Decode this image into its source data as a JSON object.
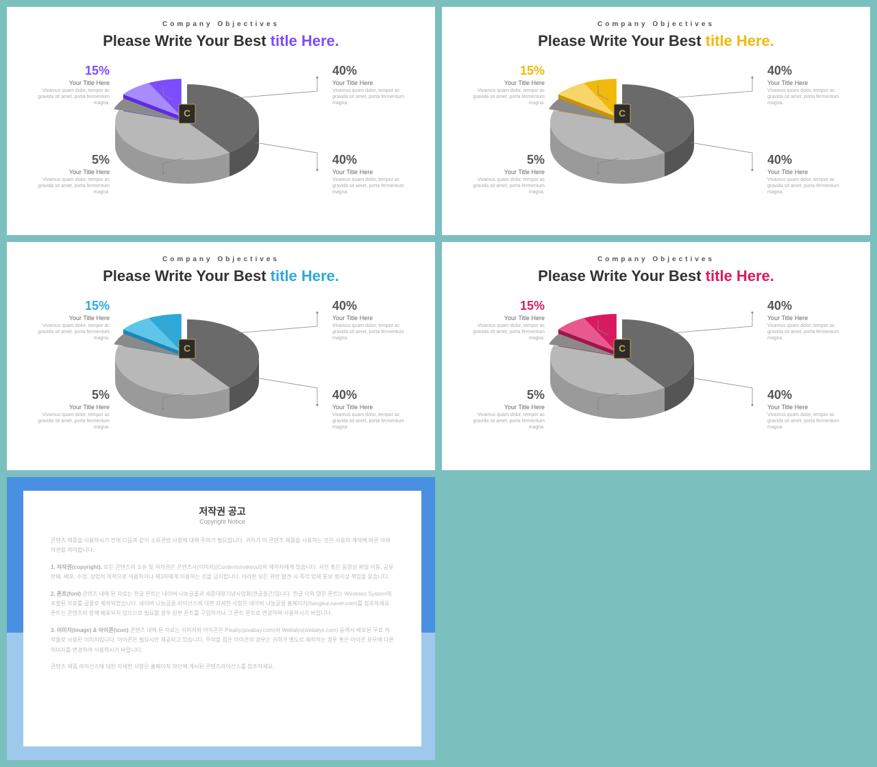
{
  "common": {
    "overline": "Company Objectives",
    "title_prefix": "Please Write Your Best ",
    "title_accent": "title Here.",
    "callouts": {
      "top_left": {
        "pct": "15%",
        "sub": "Your Title Here",
        "desc": "Vivamus quam dolor, tempor ac gravida sit amet, porta fermentum magna."
      },
      "bot_left": {
        "pct": "5%",
        "sub": "Your Title Here",
        "desc": "Vivamus quam dolor, tempor ac gravida sit amet, porta fermentum magna."
      },
      "top_right": {
        "pct": "40%",
        "sub": "Your Title Here",
        "desc": "Vivamus quam dolor, tempor ac gravida sit amet, porta fermentum magna."
      },
      "bot_right": {
        "pct": "40%",
        "sub": "Your Title Here",
        "desc": "Vivamus quam dolor, tempor ac gravida sit amet, porta fermentum magna."
      }
    },
    "pie": {
      "type": "pie-3d-exploded",
      "slices": [
        {
          "label": "top_right",
          "value": 40,
          "color_top": "#6a6a6a",
          "color_side": "#555555"
        },
        {
          "label": "bot_right",
          "value": 40,
          "color_top": "#b8b8b8",
          "color_side": "#9a9a9a"
        },
        {
          "label": "bot_left",
          "value": 5,
          "color_top": "#8a8a8a",
          "color_side": "#707070"
        },
        {
          "label": "top_left",
          "value": 15,
          "accent": true
        }
      ],
      "background": "#ffffff",
      "center_badge": "C",
      "leader_color": "#888888"
    }
  },
  "slides": [
    {
      "accent_color": "#7b4dff",
      "accent_side": "#5a2de0",
      "accent_light": "#a78bff"
    },
    {
      "accent_color": "#f0b90b",
      "accent_side": "#c79400",
      "accent_light": "#f7d568"
    },
    {
      "accent_color": "#2ea8d9",
      "accent_side": "#1d86b3",
      "accent_light": "#5fc5e8"
    },
    {
      "accent_color": "#d81b60",
      "accent_side": "#a0144a",
      "accent_light": "#e85a8f"
    }
  ],
  "copyright": {
    "title": "저작권 공고",
    "subtitle": "Copyright Notice",
    "paragraphs": [
      "콘텐츠 제품을 사용하시기 전에 다음과 같이 소유권법 사항에 대해 주의가 필요합니다. 귀하가 이 콘텐츠 제품을 사용하는 것은 사용자 계약에 따른 아래 약관을 의미합니다.",
      "<b>1. 저작권(copyright).</b> 모든 콘텐츠의 소유 및 저작권은 콘텐츠사(이미지)(Contentsmakeout)의 제작자에게 있습니다. 사진 혹은 동영상 파일 이동, 공유 판매, 배포, 수정, 상업적 목적으로 이용하거나 제3자에게 이용하는 것을 금지합니다. 이러한 모든 위반 발견 시 즉각 업체 통보 형사상 책임을 묻습니다.",
      "<b>2. 폰트(font)</b> 콘텐츠 내에 된 자료는 한글 폰트는 네이버 나눔글꼴과 세종대왕기념사업회(한글꼴큰)입니다. 한글 이외 영문 폰트는 Windows System에 포함된 자료를 글꼴로 제작되었습니다. 네이버 나눔글꼴 라이선스에 대한 자세한 사항은 네이버 나눔글꼴 홈페이지(hangeul.naver.com)를 참조하세요. 폰트는 콘텐츠의 함께 배포되지 않으므로 필요할 경우 원본 폰트를 구입하거나 그 폰트 폰트로 변경하여 사용하시기 바랍니다.",
      "<b>3. 이미지(image) & 아이콘(icon)</b> 콘텐츠 내에 된 자료는 이미지와 아이콘은 Pixaby(pixabay.com)와 Webalys(webalys.com) 동에서 배포된 무료 저작물로 사용된 이미지입니다. 아이콘은 필요시만 제공되고 있습니다. 주의할 점은 아이콘의 경우는 귀하가 별도로 제작하는 경우 혹은 아이콘 유무에 다른 이미지를 변경하여 사용하시기 바랍니다.",
      "콘텐츠 제품 라이선스에 대한 자세한 사항은 홈페이지 하단에 게시된 콘텐츠라이선스를 참조하세요."
    ],
    "border_color_top": "#4a90e2",
    "border_color_bottom": "#9ec9ed"
  }
}
